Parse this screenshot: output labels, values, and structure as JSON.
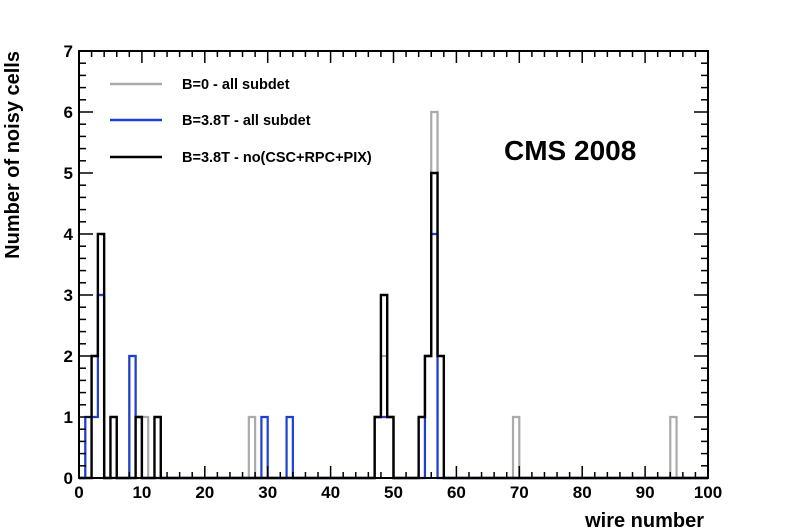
{
  "chart_data": {
    "type": "histogram",
    "xlabel": "wire number",
    "ylabel": "Number of noisy cells",
    "annotation": "CMS 2008",
    "xlim": [
      0,
      100
    ],
    "ylim": [
      0,
      7
    ],
    "xticks": [
      "0",
      "10",
      "20",
      "30",
      "40",
      "50",
      "60",
      "70",
      "80",
      "90",
      "100"
    ],
    "yticks": [
      "0",
      "1",
      "2",
      "3",
      "4",
      "5",
      "6",
      "7"
    ],
    "bin_width": 1,
    "legend_position": "top-left",
    "series": [
      {
        "name": "B=0 - all subdet",
        "color": "#aaaaaa",
        "bins": [
          {
            "x": 1,
            "y": 1
          },
          {
            "x": 2,
            "y": 2
          },
          {
            "x": 3,
            "y": 3
          },
          {
            "x": 8,
            "y": 2
          },
          {
            "x": 10,
            "y": 1
          },
          {
            "x": 27,
            "y": 1
          },
          {
            "x": 47,
            "y": 1
          },
          {
            "x": 48,
            "y": 2
          },
          {
            "x": 49,
            "y": 1
          },
          {
            "x": 55,
            "y": 2
          },
          {
            "x": 56,
            "y": 6
          },
          {
            "x": 69,
            "y": 1
          },
          {
            "x": 94,
            "y": 1
          }
        ]
      },
      {
        "name": "B=3.8T - all subdet",
        "color": "#1f3fd0",
        "bins": [
          {
            "x": 1,
            "y": 1
          },
          {
            "x": 2,
            "y": 1
          },
          {
            "x": 3,
            "y": 3
          },
          {
            "x": 8,
            "y": 2
          },
          {
            "x": 9,
            "y": 1
          },
          {
            "x": 29,
            "y": 1
          },
          {
            "x": 33,
            "y": 1
          },
          {
            "x": 47,
            "y": 1
          },
          {
            "x": 48,
            "y": 1
          },
          {
            "x": 49,
            "y": 1
          },
          {
            "x": 55,
            "y": 2
          },
          {
            "x": 56,
            "y": 4
          }
        ]
      },
      {
        "name": "B=3.8T - no(CSC+RPC+PIX)",
        "color": "#000000",
        "bins": [
          {
            "x": 2,
            "y": 2
          },
          {
            "x": 3,
            "y": 4
          },
          {
            "x": 5,
            "y": 1
          },
          {
            "x": 9,
            "y": 1
          },
          {
            "x": 12,
            "y": 1
          },
          {
            "x": 47,
            "y": 1
          },
          {
            "x": 48,
            "y": 3
          },
          {
            "x": 49,
            "y": 1
          },
          {
            "x": 54,
            "y": 1
          },
          {
            "x": 55,
            "y": 2
          },
          {
            "x": 56,
            "y": 5
          },
          {
            "x": 57,
            "y": 2
          }
        ]
      }
    ]
  }
}
